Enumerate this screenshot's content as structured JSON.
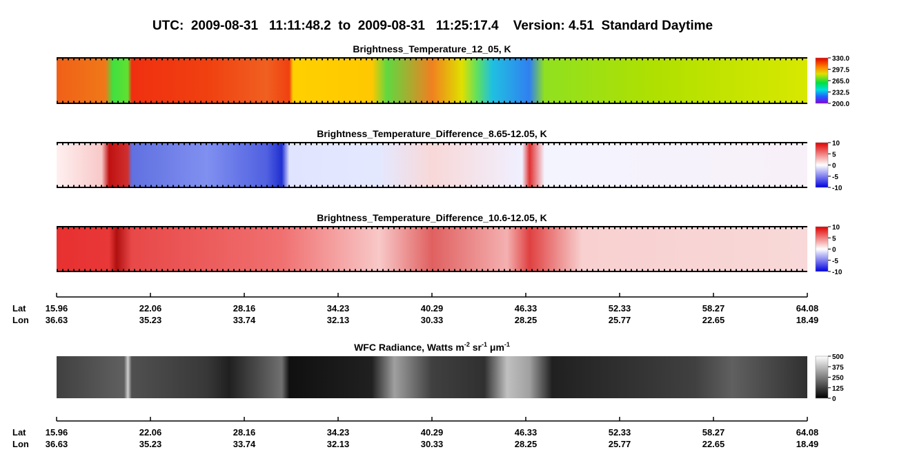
{
  "title": "UTC:  2009-08-31   11:11:48.2  to  2009-08-31   11:25:17.4    Version: 4.51  Standard Daytime",
  "panels": [
    {
      "title": [
        {
          "text": "Brightness_Temperature_12_05, K"
        }
      ],
      "colorbar": [
        "330.0",
        "297.5",
        "265.0",
        "232.5",
        "200.0"
      ]
    },
    {
      "title": [
        {
          "text": "Brightness_Temperature_Difference_8.65-12.05, K"
        }
      ],
      "colorbar": [
        "10",
        "5",
        "0",
        "-5",
        "-10"
      ]
    },
    {
      "title": [
        {
          "text": "Brightness_Temperature_Difference_10.6-12.05, K"
        }
      ],
      "colorbar": [
        "10",
        "5",
        "0",
        "-5",
        "-10"
      ]
    },
    {
      "title": [
        {
          "text": "WFC Radiance, Watts m"
        },
        {
          "text": "-2",
          "sup": true
        },
        {
          "text": " sr"
        },
        {
          "text": "-1",
          "sup": true
        },
        {
          "text": " μm"
        },
        {
          "text": "-1",
          "sup": true
        }
      ],
      "colorbar": [
        "500",
        "375",
        "250",
        "125",
        "0"
      ]
    }
  ],
  "axes": [
    {
      "lat_label": "Lat",
      "lon_label": "Lon",
      "lat": [
        "15.96",
        "22.06",
        "28.16",
        "34.23",
        "40.29",
        "46.33",
        "52.33",
        "58.27",
        "64.08"
      ],
      "lon": [
        "36.63",
        "35.23",
        "33.74",
        "32.13",
        "30.33",
        "28.25",
        "25.77",
        "22.65",
        "18.49"
      ]
    },
    {
      "lat_label": "Lat",
      "lon_label": "Lon",
      "lat": [
        "15.96",
        "22.06",
        "28.16",
        "34.23",
        "40.29",
        "46.33",
        "52.33",
        "58.27",
        "64.08"
      ],
      "lon": [
        "36.63",
        "35.23",
        "33.74",
        "32.13",
        "30.33",
        "28.25",
        "25.77",
        "22.65",
        "18.49"
      ]
    }
  ]
}
